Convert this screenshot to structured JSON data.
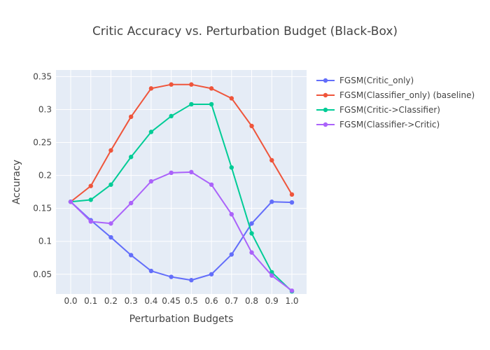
{
  "chart_data": {
    "type": "line",
    "title": "Critic Accuracy vs. Perturbation Budget (Black-Box)",
    "xlabel": "Perturbation Budgets",
    "ylabel": "Accuracy",
    "categories": [
      "0.0",
      "0.1",
      "0.2",
      "0.3",
      "0.4",
      "0.45",
      "0.5",
      "0.6",
      "0.7",
      "0.8",
      "0.9",
      "1.0"
    ],
    "yticks": [
      "0.05",
      "0.1",
      "0.15",
      "0.2",
      "0.25",
      "0.3",
      "0.35"
    ],
    "ylim": [
      0.02,
      0.36
    ],
    "grid": true,
    "legend_position": "top-right outside",
    "background_color": "#e5ecf6",
    "series": [
      {
        "name": "FGSM(Critic_only)",
        "color": "#636efa",
        "values": [
          0.16,
          0.132,
          0.106,
          0.079,
          0.055,
          0.046,
          0.041,
          0.05,
          0.08,
          0.127,
          0.16,
          0.159
        ]
      },
      {
        "name": "FGSM(Classifier_only) (baseline)",
        "color": "#ef553b",
        "values": [
          0.16,
          0.184,
          0.238,
          0.289,
          0.332,
          0.338,
          0.338,
          0.332,
          0.317,
          0.275,
          0.223,
          0.171
        ]
      },
      {
        "name": "FGSM(Critic->Classifier)",
        "color": "#00cc96",
        "values": [
          0.16,
          0.163,
          0.186,
          0.228,
          0.266,
          0.29,
          0.308,
          0.308,
          0.212,
          0.112,
          0.053,
          0.024
        ]
      },
      {
        "name": "FGSM(Classifier->Critic)",
        "color": "#ab63fa",
        "values": [
          0.16,
          0.13,
          0.127,
          0.158,
          0.191,
          0.204,
          0.205,
          0.186,
          0.141,
          0.083,
          0.048,
          0.025
        ]
      }
    ]
  }
}
